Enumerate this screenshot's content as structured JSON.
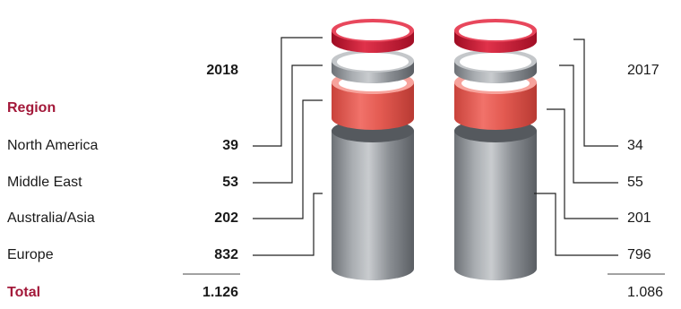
{
  "chart_data": {
    "type": "table",
    "legend_title": "Region",
    "total_label": "Total",
    "years": [
      "2018",
      "2017"
    ],
    "categories": [
      "North America",
      "Middle East",
      "Australia/Asia",
      "Europe"
    ],
    "series": [
      {
        "name": "2018",
        "values": [
          39,
          53,
          202,
          832
        ],
        "labels": [
          "39",
          "53",
          "202",
          "832"
        ],
        "total": "1.126"
      },
      {
        "name": "2017",
        "values": [
          34,
          55,
          201,
          796
        ],
        "labels": [
          "34",
          "55",
          "201",
          "796"
        ],
        "total": "1.086"
      }
    ],
    "colors": {
      "accent": "#a3193a",
      "ring_red": "#c8102e",
      "band_coral": "#e8574e",
      "steel": "#8d9196",
      "steel_dark": "#5f6368",
      "steel_light": "#c4c7ca",
      "line": "#222222"
    }
  }
}
